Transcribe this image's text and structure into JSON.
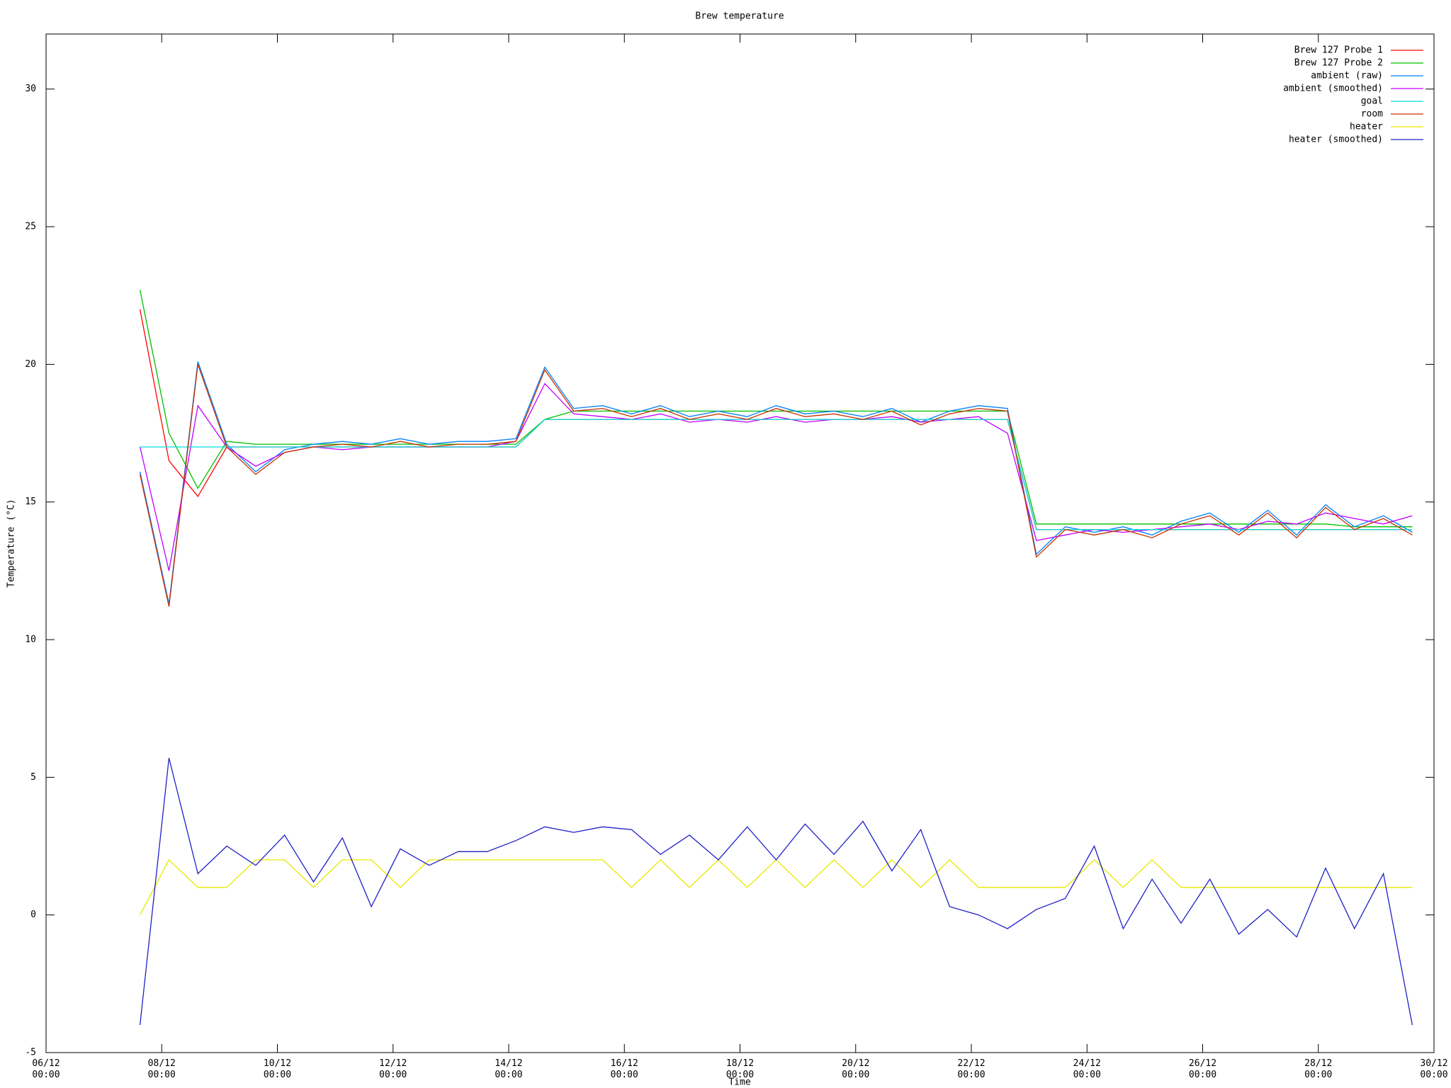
{
  "chart_data": {
    "type": "line",
    "title": "Brew temperature",
    "x_label": "Time",
    "y_label": "Temperature (°C)",
    "xlim": [
      "06/12 00:00",
      "30/12 00:00"
    ],
    "xticks": [
      "06/12 00:00",
      "08/12 00:00",
      "10/12 00:00",
      "12/12 00:00",
      "14/12 00:00",
      "16/12 00:00",
      "18/12 00:00",
      "20/12 00:00",
      "22/12 00:00",
      "24/12 00:00",
      "26/12 00:00",
      "28/12 00:00",
      "30/12 00:00"
    ],
    "ylim": [
      -5,
      32
    ],
    "yticks": [
      -5,
      0,
      5,
      10,
      15,
      20,
      25,
      30
    ],
    "grid": false,
    "legend": "top-right",
    "x": [
      "07/12 15:00",
      "08/12 03:00",
      "08/12 15:00",
      "09/12 03:00",
      "09/12 15:00",
      "10/12 03:00",
      "10/12 15:00",
      "11/12 03:00",
      "11/12 15:00",
      "12/12 03:00",
      "12/12 15:00",
      "13/12 03:00",
      "13/12 15:00",
      "14/12 03:00",
      "14/12 15:00",
      "15/12 03:00",
      "15/12 15:00",
      "16/12 03:00",
      "16/12 15:00",
      "17/12 03:00",
      "17/12 15:00",
      "18/12 03:00",
      "18/12 15:00",
      "19/12 03:00",
      "19/12 15:00",
      "20/12 03:00",
      "20/12 15:00",
      "21/12 03:00",
      "21/12 15:00",
      "22/12 03:00",
      "22/12 15:00",
      "23/12 03:00",
      "23/12 15:00",
      "24/12 03:00",
      "24/12 15:00",
      "25/12 03:00",
      "25/12 15:00",
      "26/12 03:00",
      "26/12 15:00",
      "27/12 03:00",
      "27/12 15:00",
      "28/12 03:00",
      "28/12 15:00",
      "29/12 03:00",
      "29/12 15:00"
    ],
    "series": [
      {
        "name": "Brew 127 Probe 1",
        "color": "#ff0000",
        "values": [
          22,
          16.5,
          15.2,
          17,
          17,
          17,
          17,
          17,
          17,
          17,
          17,
          17,
          17,
          17,
          18,
          18,
          18,
          18,
          18,
          18,
          18,
          18,
          18,
          18,
          18,
          18,
          18,
          18,
          18,
          18,
          18,
          14,
          14,
          14,
          14,
          14,
          14,
          14,
          14,
          14,
          14,
          14,
          14,
          14,
          14
        ]
      },
      {
        "name": "Brew 127 Probe 2",
        "color": "#00c000",
        "values": [
          22.7,
          17.5,
          15.5,
          17.2,
          17.1,
          17.1,
          17.1,
          17.1,
          17.1,
          17.1,
          17.1,
          17.1,
          17.1,
          17.1,
          18,
          18.3,
          18.3,
          18.3,
          18.3,
          18.3,
          18.3,
          18.3,
          18.3,
          18.3,
          18.3,
          18.3,
          18.3,
          18.3,
          18.3,
          18.3,
          18.3,
          14.2,
          14.2,
          14.2,
          14.2,
          14.2,
          14.2,
          14.2,
          14.2,
          14.2,
          14.2,
          14.2,
          14.1,
          14.1,
          14.1
        ]
      },
      {
        "name": "ambient (raw)",
        "color": "#0080ff",
        "values": [
          16.1,
          11.3,
          20.1,
          17.1,
          16.1,
          16.9,
          17.1,
          17.2,
          17.1,
          17.3,
          17.1,
          17.2,
          17.2,
          17.3,
          19.9,
          18.4,
          18.5,
          18.2,
          18.5,
          18.1,
          18.3,
          18.1,
          18.5,
          18.2,
          18.3,
          18.1,
          18.4,
          17.9,
          18.3,
          18.5,
          18.4,
          13.1,
          14.1,
          13.9,
          14.1,
          13.8,
          14.3,
          14.6,
          13.9,
          14.7,
          13.8,
          14.9,
          14.1,
          14.5,
          13.9
        ]
      },
      {
        "name": "ambient (smoothed)",
        "color": "#c000ff",
        "values": [
          17,
          12.5,
          18.5,
          17,
          16.3,
          16.8,
          17,
          16.9,
          17,
          17,
          17,
          17,
          17,
          17.2,
          19.3,
          18.2,
          18.1,
          18,
          18.2,
          17.9,
          18,
          17.9,
          18.1,
          17.9,
          18,
          18,
          18.1,
          17.9,
          18,
          18.1,
          17.5,
          13.6,
          13.8,
          14,
          13.9,
          14,
          14.1,
          14.2,
          14,
          14.3,
          14.2,
          14.6,
          14.4,
          14.2,
          14.5
        ]
      },
      {
        "name": "goal",
        "color": "#00dddd",
        "values": [
          17,
          17,
          17,
          17,
          17,
          17,
          17,
          17,
          17,
          17,
          17,
          17,
          17,
          17,
          18,
          18,
          18,
          18,
          18,
          18,
          18,
          18,
          18,
          18,
          18,
          18,
          18,
          18,
          18,
          18,
          18,
          14,
          14,
          14,
          14,
          14,
          14,
          14,
          14,
          14,
          14,
          14,
          14,
          14,
          14
        ]
      },
      {
        "name": "room",
        "color": "#c83200",
        "values": [
          16,
          11.2,
          20,
          17,
          16,
          16.8,
          17,
          17.1,
          17,
          17.2,
          17,
          17.1,
          17.1,
          17.2,
          19.8,
          18.3,
          18.4,
          18.1,
          18.4,
          18,
          18.2,
          18,
          18.4,
          18.1,
          18.2,
          18,
          18.3,
          17.8,
          18.2,
          18.4,
          18.3,
          13,
          14,
          13.8,
          14,
          13.7,
          14.2,
          14.5,
          13.8,
          14.6,
          13.7,
          14.8,
          14,
          14.4,
          13.8
        ]
      },
      {
        "name": "heater",
        "color": "#e8e800",
        "values": [
          0,
          2,
          1,
          1,
          2,
          2,
          1,
          2,
          2,
          1,
          2,
          2,
          2,
          2,
          2,
          2,
          2,
          1,
          2,
          1,
          2,
          1,
          2,
          1,
          2,
          1,
          2,
          1,
          2,
          1,
          1,
          1,
          1,
          2,
          1,
          2,
          1,
          1,
          1,
          1,
          1,
          1,
          1,
          1,
          1
        ]
      },
      {
        "name": "heater (smoothed)",
        "color": "#2020c8",
        "values": [
          -4,
          5.7,
          1.5,
          2.5,
          1.8,
          2.9,
          1.2,
          2.8,
          0.3,
          2.4,
          1.8,
          2.3,
          2.3,
          2.7,
          3.2,
          3,
          3.2,
          3.1,
          2.2,
          2.9,
          2,
          3.2,
          2,
          3.3,
          2.2,
          3.4,
          1.6,
          3.1,
          0.3,
          0,
          -0.5,
          0.2,
          0.6,
          2.5,
          -0.5,
          1.3,
          -0.3,
          1.3,
          -0.7,
          0.2,
          -0.8,
          1.7,
          -0.5,
          1.5,
          -4
        ]
      }
    ]
  }
}
